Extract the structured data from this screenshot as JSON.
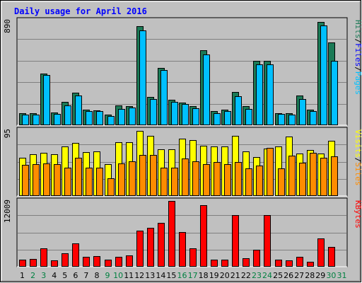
{
  "chart_data": {
    "type": "bar",
    "title": "Daily usage for April 2016",
    "days": [
      1,
      2,
      3,
      4,
      5,
      6,
      7,
      8,
      9,
      10,
      11,
      12,
      13,
      14,
      15,
      16,
      17,
      18,
      19,
      20,
      21,
      22,
      23,
      24,
      25,
      26,
      27,
      28,
      29,
      30,
      31
    ],
    "weekend_days": [
      2,
      3,
      9,
      10,
      16,
      17,
      23,
      24,
      30,
      31
    ],
    "panels": [
      {
        "id": "hits-files-pages",
        "max_label": "890",
        "max": 890,
        "series": [
          {
            "name": "Hits",
            "color": "#1b7a56",
            "values": [
              105,
              100,
              440,
              110,
              200,
              275,
              130,
              125,
              90,
              170,
              165,
              840,
              240,
              490,
              215,
              195,
              160,
              635,
              120,
              135,
              285,
              160,
              545,
              550,
              105,
              100,
              255,
              135,
              880,
              705,
              0
            ]
          },
          {
            "name": "Files",
            "color": "#00c0ff",
            "values": [
              92,
              88,
              425,
              95,
              170,
              250,
              120,
              118,
              80,
              140,
              150,
              805,
              220,
              470,
              200,
              180,
              145,
              600,
              105,
              120,
              245,
              140,
              515,
              520,
              95,
              90,
              225,
              120,
              845,
              545,
              0
            ]
          },
          {
            "name": "Pages",
            "color": "#00c0ff",
            "values": [
              0,
              0,
              0,
              0,
              0,
              0,
              0,
              0,
              0,
              0,
              0,
              0,
              0,
              0,
              0,
              0,
              0,
              0,
              0,
              0,
              0,
              0,
              0,
              0,
              0,
              0,
              0,
              0,
              0,
              0,
              0
            ]
          }
        ],
        "legend": [
          "Pages",
          "Files",
          "Hits"
        ]
      },
      {
        "id": "visits-sites",
        "max_label": "95",
        "max": 95,
        "series": [
          {
            "name": "Visits",
            "color": "#ffff00",
            "values": [
              55,
              60,
              62,
              60,
              72,
              77,
              63,
              64,
              46,
              78,
              78,
              94,
              87,
              67,
              67,
              83,
              81,
              73,
              71,
              72,
              87,
              64,
              56,
              68,
              72,
              86,
              61,
              66,
              61,
              80,
              0
            ]
          },
          {
            "name": "Sites",
            "color": "#ff8c00",
            "values": [
              45,
              46,
              47,
              46,
              41,
              55,
              41,
              41,
              26,
              47,
              50,
              59,
              59,
              41,
              41,
              54,
              50,
              46,
              49,
              46,
              49,
              40,
              44,
              69,
              40,
              58,
              48,
              62,
              55,
              57,
              0
            ]
          }
        ],
        "legend": [
          "Sites",
          "Visits"
        ]
      },
      {
        "id": "kbytes",
        "max_label": "12009",
        "max": 12009,
        "series": [
          {
            "name": "KBytes",
            "color": "#ff0000",
            "values": [
              1350,
              1400,
              3300,
              1200,
              2400,
              4250,
              1800,
              1900,
              1300,
              1750,
              2100,
              6600,
              7100,
              7950,
              12009,
              6350,
              3400,
              11200,
              1250,
              1300,
              9450,
              1600,
              3150,
              9450,
              1300,
              1200,
              1800,
              900,
              5200,
              3600,
              0
            ]
          }
        ],
        "legend": [
          "KBytes"
        ]
      }
    ],
    "colors": {
      "background": "#c0c0c0",
      "title": "#0000ff",
      "grid": "#808080",
      "weekday_label": "#000000",
      "weekend_label": "#008040"
    }
  }
}
